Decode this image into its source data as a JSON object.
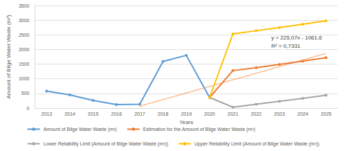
{
  "chart_data": {
    "type": "line",
    "x_label": "Years",
    "y_label": "Amount of Bilge Water Waste (m³)",
    "categories": [
      "2013",
      "2014",
      "2015",
      "2016",
      "2017",
      "2018",
      "2019",
      "2020",
      "2021",
      "2022",
      "2023",
      "2024",
      "2025"
    ],
    "series": [
      {
        "name": "Amount of Bilge Water Waste (m³)",
        "color": "#5b9bd5",
        "marker": "circle",
        "line_style": "solid",
        "values": [
          580,
          450,
          260,
          120,
          130,
          1590,
          1800,
          360,
          null,
          null,
          null,
          null,
          null
        ]
      },
      {
        "name": "Estimation for the Amount of Bilge Water Waste (m³)",
        "color": "#ed7d31",
        "marker": "circle",
        "line_style": "solid",
        "values": [
          null,
          null,
          null,
          null,
          null,
          null,
          null,
          360,
          1280,
          1380,
          1490,
          1600,
          1720
        ]
      },
      {
        "name": "Lower Reliability Limit (Amount of Bilge Water Waste (m³))",
        "color": "#a5a5a5",
        "marker": "circle",
        "line_style": "solid",
        "values": [
          null,
          null,
          null,
          null,
          null,
          null,
          null,
          360,
          30,
          130,
          230,
          330,
          440
        ]
      },
      {
        "name": "Upper Reliability Limit (Amount of Bilge Water Waste (m³))",
        "color": "#ffc000",
        "marker": "circle",
        "line_style": "solid",
        "values": [
          null,
          null,
          null,
          null,
          null,
          null,
          null,
          360,
          2530,
          2640,
          2750,
          2860,
          2980
        ]
      },
      {
        "type": "line",
        "color": "#ed7d31",
        "marker": "none",
        "line_style": "dotted",
        "values": [
          null,
          null,
          null,
          null,
          64,
          290,
          515,
          740,
          965,
          1190,
          1415,
          1640,
          1865
        ]
      }
    ],
    "annotations": [
      "y = 225,07x - 1061,6",
      "R² = 0,7331"
    ],
    "ylim": [
      0,
      3500
    ],
    "yticks": [
      0,
      500,
      1000,
      1500,
      2000,
      2500,
      3000,
      3500
    ],
    "grid": true,
    "legend": "bottom"
  }
}
